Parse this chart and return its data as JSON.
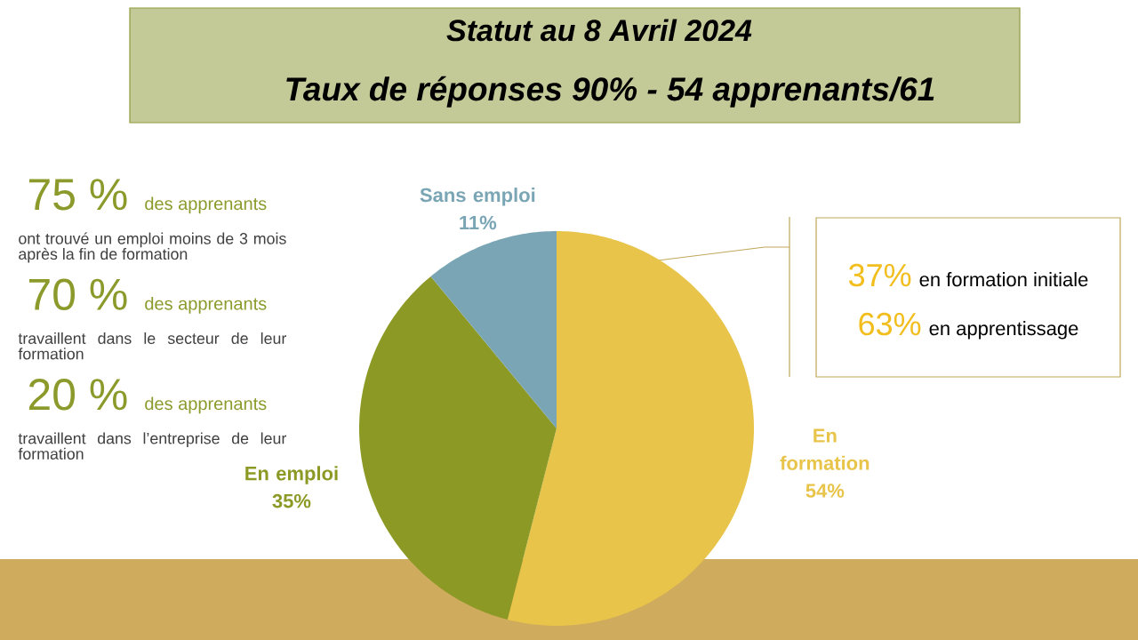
{
  "chart_data": {
    "type": "pie",
    "title": "Statut au 8 Avril 2024",
    "subtitle": "Taux de réponses 90% - 54 apprenants/61",
    "categories": [
      "En formation",
      "En emploi",
      "Sans emploi"
    ],
    "values": [
      54,
      35,
      11
    ],
    "value_labels": [
      "54%",
      "35%",
      "11%"
    ],
    "colors": [
      "#e8c44a",
      "#8c9a25",
      "#7aa5b5"
    ],
    "annotations": [
      "75 %",
      "des apprenants",
      "ont trouvé un emploi moins de 3 mois après la fin de formation",
      "70 %",
      "des apprenants",
      "travaillent dans le secteur de leur formation",
      "20 %",
      "des apprenants",
      "travaillent dans l’entreprise de leur formation",
      "37%",
      "en formation initiale",
      "63%",
      "en apprentissage"
    ]
  }
}
